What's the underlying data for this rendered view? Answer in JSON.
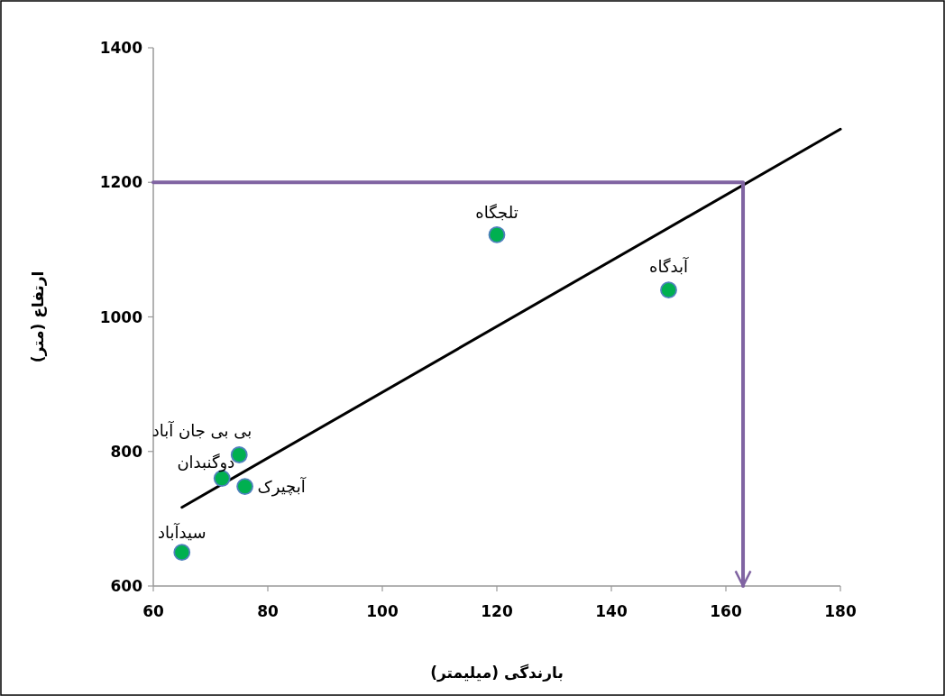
{
  "chart_data": {
    "type": "scatter",
    "xlabel": "بارندگی (میلیمتر)",
    "ylabel": "ارتفاع (متر)",
    "xlim": [
      60,
      180
    ],
    "ylim": [
      600,
      1400
    ],
    "xticks": [
      60,
      80,
      100,
      120,
      140,
      160,
      180
    ],
    "yticks": [
      600,
      800,
      1000,
      1200,
      1400
    ],
    "marker": "circle",
    "series": [
      {
        "color": "#00b050",
        "x": [
          65,
          72,
          75,
          76,
          120,
          150
        ],
        "values": [
          650,
          760,
          795,
          748,
          1122,
          1040
        ]
      },
      {
        "type": "line",
        "color": "#000000",
        "marker": "none",
        "x": [
          65,
          180
        ],
        "values": [
          717,
          1279
        ]
      },
      {
        "type": "line",
        "color": "#8064a2",
        "marker": "none",
        "line_style": "solid",
        "x": [
          60,
          163,
          163
        ],
        "values": [
          1200,
          1200,
          600
        ]
      }
    ],
    "annotations": [
      {
        "text": "سیدآباد",
        "x": 65,
        "y": 650
      },
      {
        "text": "دوگنبدان",
        "x": 72,
        "y": 760
      },
      {
        "text": "بی بی جان آباد",
        "x": 75,
        "y": 795
      },
      {
        "text": "آبچیرک",
        "x": 76,
        "y": 748
      },
      {
        "text": "تلجگاه",
        "x": 120,
        "y": 1122
      },
      {
        "text": "آبدگاه",
        "x": 150,
        "y": 1040
      }
    ]
  }
}
